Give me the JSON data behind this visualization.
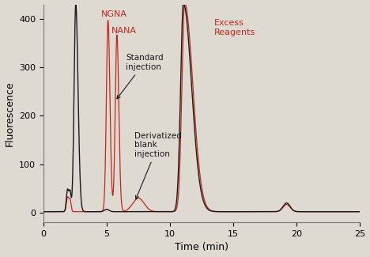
{
  "xlabel": "Time (min)",
  "ylabel": "Fluorescence",
  "xlim": [
    0,
    25
  ],
  "ylim": [
    -20,
    430
  ],
  "yticks": [
    0,
    100,
    200,
    300,
    400
  ],
  "xticks": [
    0,
    5,
    10,
    15,
    20,
    25
  ],
  "black_color": "#1a1a1a",
  "red_color": "#c0281a",
  "bg_color": "#dedad2"
}
